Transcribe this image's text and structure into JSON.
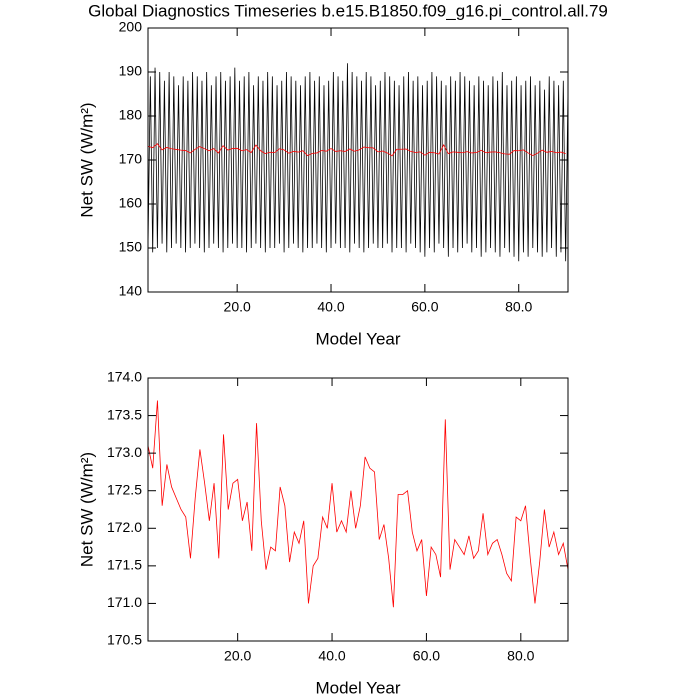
{
  "chart_data": [
    {
      "type": "line",
      "title": "Global Diagnostics Timeseries b.e15.B1850.f09_g16.pi_control.all.79",
      "xlabel": "Model Year",
      "ylabel": "Net SW (W/m²)",
      "xlim": [
        1,
        90.5
      ],
      "ylim": [
        140,
        200
      ],
      "xticks": [
        {
          "value": 20,
          "label": "20.0"
        },
        {
          "value": 40,
          "label": "40.0"
        },
        {
          "value": 60,
          "label": "60.0"
        },
        {
          "value": 80,
          "label": "80.0"
        }
      ],
      "yticks": [
        140,
        150,
        160,
        170,
        180,
        190,
        200
      ],
      "series": [
        {
          "color": "#000000",
          "x": [
            1,
            1.5,
            2,
            2.5,
            3,
            3.5,
            4,
            4.5,
            5,
            5.5,
            6,
            6.5,
            7,
            7.5,
            8,
            8.5,
            9,
            9.5,
            10,
            10.5,
            11,
            11.5,
            12,
            12.5,
            13,
            13.5,
            14,
            14.5,
            15,
            15.5,
            16,
            16.5,
            17,
            17.5,
            18,
            18.5,
            19,
            19.5,
            20,
            20.5,
            21,
            21.5,
            22,
            22.5,
            23,
            23.5,
            24,
            24.5,
            25,
            25.5,
            26,
            26.5,
            27,
            27.5,
            28,
            28.5,
            29,
            29.5,
            30,
            30.5,
            31,
            31.5,
            32,
            32.5,
            33,
            33.5,
            34,
            34.5,
            35,
            35.5,
            36,
            36.5,
            37,
            37.5,
            38,
            38.5,
            39,
            39.5,
            40,
            40.5,
            41,
            41.5,
            42,
            42.5,
            43,
            43.5,
            44,
            44.5,
            45,
            45.5,
            46,
            46.5,
            47,
            47.5,
            48,
            48.5,
            49,
            49.5,
            50,
            50.5,
            51,
            51.5,
            52,
            52.5,
            53,
            53.5,
            54,
            54.5,
            55,
            55.5,
            56,
            56.5,
            57,
            57.5,
            58,
            58.5,
            59,
            59.5,
            60,
            60.5,
            61,
            61.5,
            62,
            62.5,
            63,
            63.5,
            64,
            64.5,
            65,
            65.5,
            66,
            66.5,
            67,
            67.5,
            68,
            68.5,
            69,
            69.5,
            70,
            70.5,
            71,
            71.5,
            72,
            72.5,
            73,
            73.5,
            74,
            74.5,
            75,
            75.5,
            76,
            76.5,
            77,
            77.5,
            78,
            78.5,
            79,
            79.5,
            80,
            80.5,
            81,
            81.5,
            82,
            82.5,
            83,
            83.5,
            84,
            84.5,
            85,
            85.5,
            86,
            86.5,
            87,
            87.5,
            88,
            88.5,
            89,
            89.5,
            90,
            90.5
          ],
          "values": [
            150,
            189,
            149,
            191,
            150,
            190,
            151,
            188,
            149,
            190,
            150,
            189,
            151,
            187,
            150,
            189,
            149,
            188,
            150,
            190,
            151,
            189,
            150,
            188,
            149,
            190,
            150,
            187,
            151,
            189,
            150,
            190,
            149,
            188,
            150,
            189,
            151,
            191,
            150,
            188,
            150,
            189,
            149,
            190,
            150,
            187,
            151,
            189,
            150,
            188,
            149,
            190,
            150,
            189,
            150,
            187,
            151,
            188,
            149,
            190,
            150,
            189,
            151,
            188,
            150,
            187,
            149,
            189,
            150,
            190,
            150,
            188,
            151,
            189,
            150,
            187,
            149,
            188,
            150,
            190,
            151,
            189,
            150,
            188,
            150,
            192,
            149,
            190,
            151,
            189,
            150,
            188,
            149,
            190,
            150,
            189,
            151,
            187,
            150,
            188,
            150,
            190,
            151,
            189,
            149,
            188,
            150,
            187,
            150,
            189,
            149,
            190,
            151,
            188,
            150,
            189,
            149,
            187,
            148,
            188,
            150,
            190,
            149,
            189,
            151,
            188,
            150,
            187,
            148,
            189,
            150,
            188,
            149,
            190,
            150,
            189,
            151,
            188,
            149,
            187,
            150,
            189,
            148,
            188,
            149,
            187,
            150,
            189,
            149,
            188,
            148,
            190,
            150,
            187,
            149,
            188,
            148,
            189,
            147,
            187,
            149,
            188,
            148,
            189,
            150,
            187,
            149,
            188,
            148,
            186,
            149,
            189,
            150,
            188,
            148,
            187,
            149,
            188,
            147,
            186
          ]
        },
        {
          "color": "#ff0000",
          "x": [
            1,
            2,
            3,
            4,
            5,
            6,
            7,
            8,
            9,
            10,
            11,
            12,
            13,
            14,
            15,
            16,
            17,
            18,
            19,
            20,
            21,
            22,
            23,
            24,
            25,
            26,
            27,
            28,
            29,
            30,
            31,
            32,
            33,
            34,
            35,
            36,
            37,
            38,
            39,
            40,
            41,
            42,
            43,
            44,
            45,
            46,
            47,
            48,
            49,
            50,
            51,
            52,
            53,
            54,
            55,
            56,
            57,
            58,
            59,
            60,
            61,
            62,
            63,
            64,
            65,
            66,
            67,
            68,
            69,
            70,
            71,
            72,
            73,
            74,
            75,
            76,
            77,
            78,
            79,
            80,
            81,
            82,
            83,
            84,
            85,
            86,
            87,
            88,
            89,
            90
          ],
          "values": [
            173.1,
            172.8,
            173.7,
            172.3,
            172.85,
            172.55,
            172.4,
            172.25,
            172.15,
            171.6,
            172.4,
            173.05,
            172.6,
            172.1,
            172.6,
            171.6,
            173.25,
            172.25,
            172.6,
            172.65,
            172.1,
            172.35,
            171.7,
            173.4,
            172.1,
            171.45,
            171.75,
            171.7,
            172.55,
            172.3,
            171.55,
            171.95,
            171.8,
            172.1,
            171.0,
            171.5,
            171.6,
            172.15,
            172.0,
            172.6,
            171.95,
            172.1,
            171.95,
            172.5,
            172.0,
            172.3,
            172.95,
            172.8,
            172.75,
            171.85,
            172.05,
            171.6,
            170.95,
            172.45,
            172.45,
            172.5,
            171.95,
            171.7,
            171.85,
            171.1,
            171.75,
            171.65,
            171.35,
            173.45,
            171.45,
            171.85,
            171.75,
            171.65,
            171.9,
            171.6,
            171.7,
            172.2,
            171.65,
            171.8,
            171.85,
            171.65,
            171.4,
            171.3,
            172.15,
            172.1,
            172.3,
            171.6,
            171.0,
            171.55,
            172.25,
            171.75,
            171.95,
            171.65,
            171.8,
            171.45
          ]
        }
      ]
    },
    {
      "type": "line",
      "xlabel": "Model Year",
      "ylabel": "Net SW (W/m²)",
      "xlim": [
        1,
        90
      ],
      "ylim": [
        170.5,
        174.0
      ],
      "xticks": [
        {
          "value": 20,
          "label": "20.0"
        },
        {
          "value": 40,
          "label": "40.0"
        },
        {
          "value": 60,
          "label": "60.0"
        },
        {
          "value": 80,
          "label": "80.0"
        }
      ],
      "yticks": [
        170.5,
        {
          "value": 171,
          "label": "171.0"
        },
        171.5,
        {
          "value": 172,
          "label": "172.0"
        },
        172.5,
        {
          "value": 173,
          "label": "173.0"
        },
        173.5,
        {
          "value": 174,
          "label": "174.0"
        }
      ],
      "series": [
        {
          "color": "#ff0000",
          "x": [
            1,
            2,
            3,
            4,
            5,
            6,
            7,
            8,
            9,
            10,
            11,
            12,
            13,
            14,
            15,
            16,
            17,
            18,
            19,
            20,
            21,
            22,
            23,
            24,
            25,
            26,
            27,
            28,
            29,
            30,
            31,
            32,
            33,
            34,
            35,
            36,
            37,
            38,
            39,
            40,
            41,
            42,
            43,
            44,
            45,
            46,
            47,
            48,
            49,
            50,
            51,
            52,
            53,
            54,
            55,
            56,
            57,
            58,
            59,
            60,
            61,
            62,
            63,
            64,
            65,
            66,
            67,
            68,
            69,
            70,
            71,
            72,
            73,
            74,
            75,
            76,
            77,
            78,
            79,
            80,
            81,
            82,
            83,
            84,
            85,
            86,
            87,
            88,
            89,
            90
          ],
          "values": [
            173.1,
            172.8,
            173.7,
            172.3,
            172.85,
            172.55,
            172.4,
            172.25,
            172.15,
            171.6,
            172.4,
            173.05,
            172.6,
            172.1,
            172.6,
            171.6,
            173.25,
            172.25,
            172.6,
            172.65,
            172.1,
            172.35,
            171.7,
            173.4,
            172.1,
            171.45,
            171.75,
            171.7,
            172.55,
            172.3,
            171.55,
            171.95,
            171.8,
            172.1,
            171.0,
            171.5,
            171.6,
            172.15,
            172.0,
            172.6,
            171.95,
            172.1,
            171.95,
            172.5,
            172.0,
            172.3,
            172.95,
            172.8,
            172.75,
            171.85,
            172.05,
            171.6,
            170.95,
            172.45,
            172.45,
            172.5,
            171.95,
            171.7,
            171.85,
            171.1,
            171.75,
            171.65,
            171.35,
            173.45,
            171.45,
            171.85,
            171.75,
            171.65,
            171.9,
            171.6,
            171.7,
            172.2,
            171.65,
            171.8,
            171.85,
            171.65,
            171.4,
            171.3,
            172.15,
            172.1,
            172.3,
            171.6,
            171.0,
            171.55,
            172.25,
            171.75,
            171.95,
            171.65,
            171.8,
            171.45
          ]
        }
      ]
    }
  ]
}
